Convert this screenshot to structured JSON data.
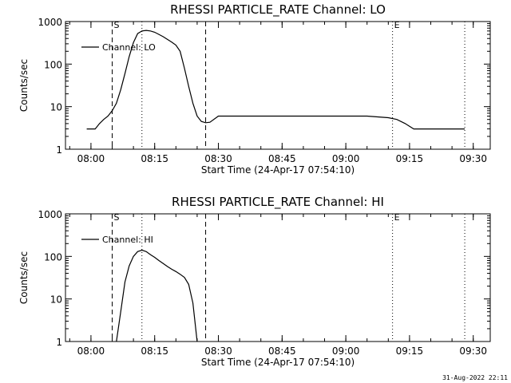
{
  "footer": {
    "timestamp": "31-Aug-2022 22:11"
  },
  "chart_data": [
    {
      "type": "line",
      "title": "RHESSI PARTICLE_RATE Channel: LO",
      "xlabel": "Start Time (24-Apr-17 07:54:10)",
      "ylabel": "Counts/sec",
      "yscale": "log",
      "ylim": [
        1,
        1000
      ],
      "xlim": [
        "07:54",
        "09:34"
      ],
      "x_ticks": [
        "08:00",
        "08:15",
        "08:30",
        "08:45",
        "09:00",
        "09:15",
        "09:30"
      ],
      "y_ticks": [
        "1",
        "10",
        "100",
        "1000"
      ],
      "legend": {
        "position": "top-left",
        "entries": [
          "Channel: LO"
        ]
      },
      "markers": [
        {
          "label": "S",
          "time": "08:05",
          "style": "dashed"
        },
        {
          "label": "",
          "time": "08:12",
          "style": "dotted"
        },
        {
          "label": "",
          "time": "08:27",
          "style": "dashed"
        },
        {
          "label": "E",
          "time": "09:11",
          "style": "dotted"
        },
        {
          "label": "",
          "time": "09:28",
          "style": "dotted"
        }
      ],
      "series": [
        {
          "name": "Channel: LO",
          "x": [
            "07:59",
            "08:00",
            "08:01",
            "08:02",
            "08:03",
            "08:04",
            "08:05",
            "08:06",
            "08:07",
            "08:08",
            "08:09",
            "08:10",
            "08:11",
            "08:12",
            "08:13",
            "08:14",
            "08:15",
            "08:16",
            "08:17",
            "08:18",
            "08:19",
            "08:20",
            "08:21",
            "08:22",
            "08:23",
            "08:24",
            "08:25",
            "08:26",
            "08:27",
            "08:28",
            "08:30",
            "08:35",
            "08:40",
            "08:45",
            "08:50",
            "08:55",
            "09:00",
            "09:05",
            "09:10",
            "09:12",
            "09:14",
            "09:16",
            "09:20",
            "09:25",
            "09:28"
          ],
          "y": [
            3,
            3,
            3,
            4,
            5,
            6,
            8,
            12,
            25,
            60,
            150,
            320,
            520,
            600,
            620,
            600,
            560,
            500,
            440,
            380,
            330,
            280,
            200,
            80,
            30,
            12,
            6,
            4.5,
            4.2,
            4.3,
            6,
            6,
            6,
            6,
            6,
            6,
            6,
            6,
            5.5,
            5,
            4,
            3,
            3,
            3,
            3
          ]
        }
      ]
    },
    {
      "type": "line",
      "title": "RHESSI PARTICLE_RATE Channel: HI",
      "xlabel": "Start Time (24-Apr-17 07:54:10)",
      "ylabel": "Counts/sec",
      "yscale": "log",
      "ylim": [
        1,
        1000
      ],
      "xlim": [
        "07:54",
        "09:34"
      ],
      "x_ticks": [
        "08:00",
        "08:15",
        "08:30",
        "08:45",
        "09:00",
        "09:15",
        "09:30"
      ],
      "y_ticks": [
        "1",
        "10",
        "100",
        "1000"
      ],
      "legend": {
        "position": "top-left",
        "entries": [
          "Channel: HI"
        ]
      },
      "markers": [
        {
          "label": "S",
          "time": "08:05",
          "style": "dashed"
        },
        {
          "label": "",
          "time": "08:12",
          "style": "dotted"
        },
        {
          "label": "",
          "time": "08:27",
          "style": "dashed"
        },
        {
          "label": "E",
          "time": "09:11",
          "style": "dotted"
        },
        {
          "label": "",
          "time": "09:28",
          "style": "dotted"
        }
      ],
      "series": [
        {
          "name": "Channel: HI",
          "x": [
            "08:06",
            "08:07",
            "08:08",
            "08:09",
            "08:10",
            "08:11",
            "08:12",
            "08:13",
            "08:14",
            "08:15",
            "08:16",
            "08:17",
            "08:18",
            "08:19",
            "08:20",
            "08:21",
            "08:22",
            "08:23",
            "08:24",
            "08:25"
          ],
          "y": [
            1,
            5,
            25,
            60,
            100,
            130,
            140,
            130,
            110,
            95,
            80,
            68,
            58,
            50,
            44,
            38,
            32,
            22,
            8,
            1
          ]
        }
      ]
    }
  ]
}
